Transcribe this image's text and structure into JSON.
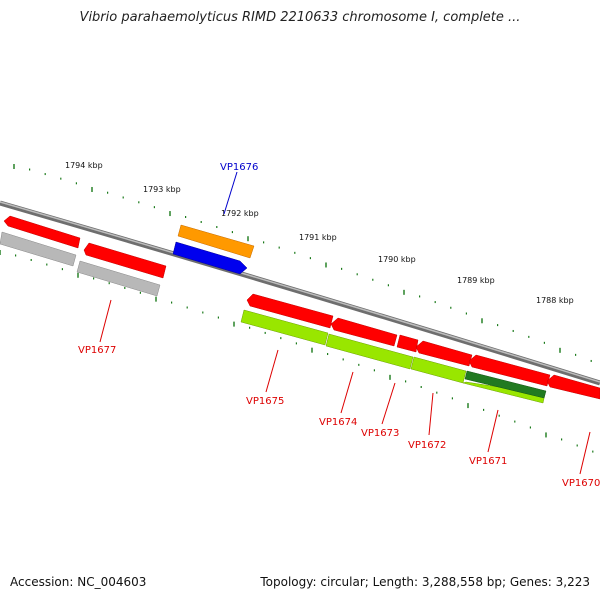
{
  "title": "Vibrio parahaemolyticus RIMD 2210633 chromosome I, complete ...",
  "footer": {
    "accession": "Accession: NC_004603",
    "topology": "Topology: circular; Length: 3,288,558 bp; Genes: 3,223"
  },
  "scale": {
    "unit": "kbp",
    "ticks": [
      "1794 kbp",
      "1793 kbp",
      "1792 kbp",
      "1791 kbp",
      "1790 kbp",
      "1789 kbp",
      "1788 kbp"
    ]
  },
  "colors": {
    "backbone": "#808080",
    "tick_green": "#1a7a1a",
    "gene_red": "#ff0000",
    "gene_gray": "#b0b0b0",
    "gene_orange": "#ff8c00",
    "gene_blue": "#0000e0",
    "gene_lime": "#99e600",
    "gene_darkgreen": "#1f7a1f",
    "label_red": "#dd0000",
    "label_blue": "#0000cc"
  },
  "gene_labels": [
    {
      "name": "VP1676",
      "color": "blue"
    },
    {
      "name": "VP1677",
      "color": "red"
    },
    {
      "name": "VP1675",
      "color": "red"
    },
    {
      "name": "VP1674",
      "color": "red"
    },
    {
      "name": "VP1673",
      "color": "red"
    },
    {
      "name": "VP1672",
      "color": "red"
    },
    {
      "name": "VP1671",
      "color": "red"
    },
    {
      "name": "VP1670",
      "color": "red"
    }
  ]
}
